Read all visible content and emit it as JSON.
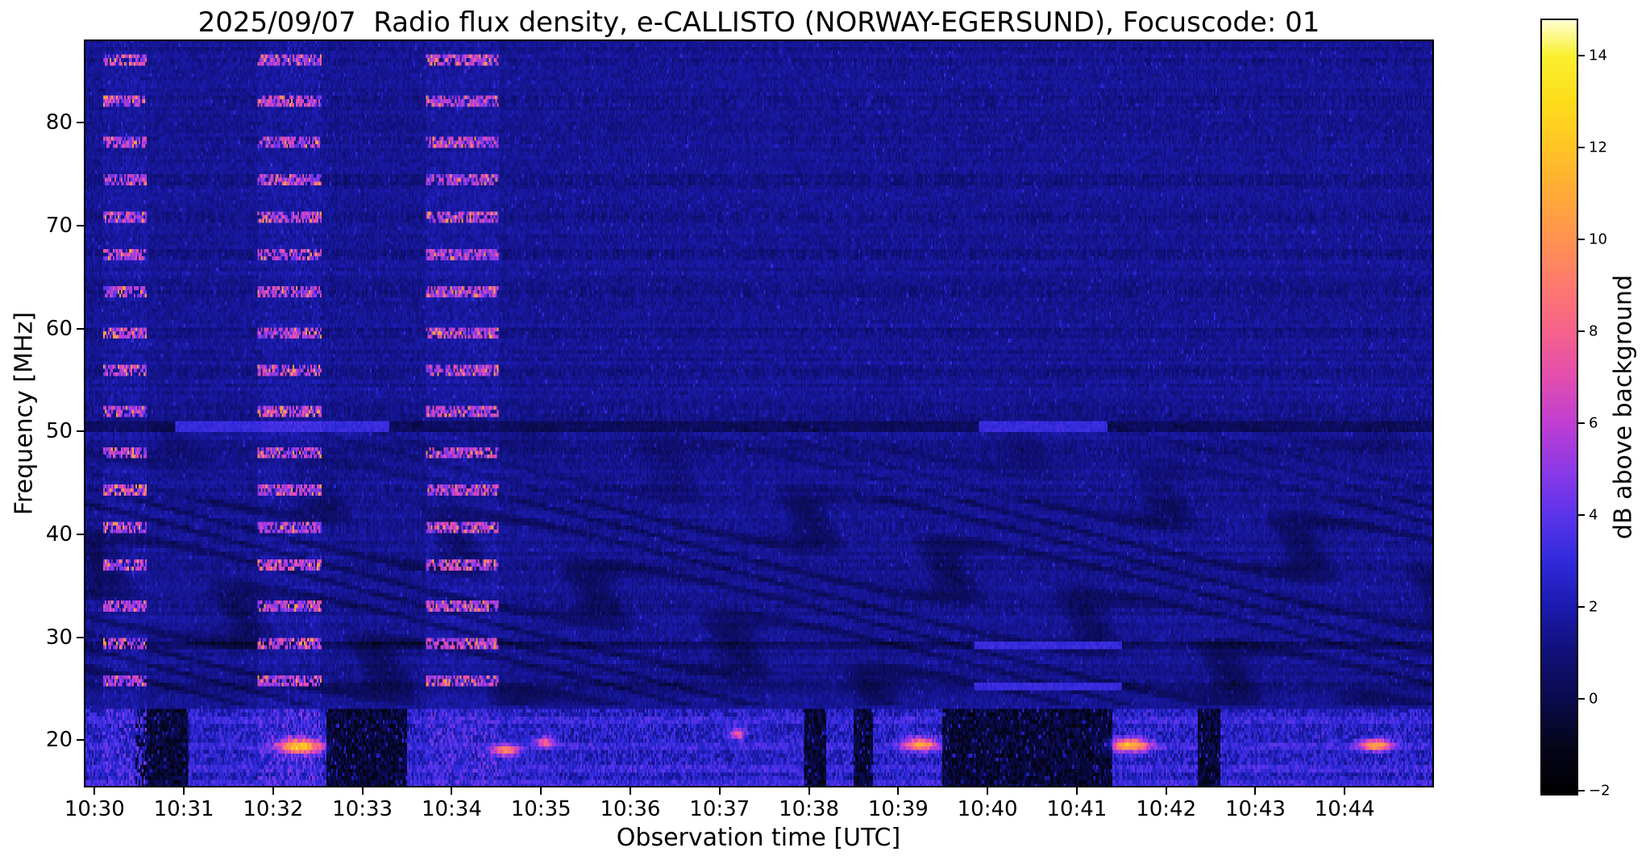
{
  "chart_data": {
    "type": "heatmap",
    "title": "2025/09/07  Radio flux density, e-CALLISTO (NORWAY-EGERSUND), Focuscode: 01",
    "xlabel": "Observation time [UTC]",
    "ylabel": "Frequency [MHz]",
    "colorbar_label": "dB above background",
    "xlim_minutes_after_1030": [
      -0.12,
      15.0
    ],
    "ylim_mhz": [
      15.4,
      88.1
    ],
    "x_ticks": [
      {
        "label": "10:30",
        "minute": 0
      },
      {
        "label": "10:31",
        "minute": 1
      },
      {
        "label": "10:32",
        "minute": 2
      },
      {
        "label": "10:33",
        "minute": 3
      },
      {
        "label": "10:34",
        "minute": 4
      },
      {
        "label": "10:35",
        "minute": 5
      },
      {
        "label": "10:36",
        "minute": 6
      },
      {
        "label": "10:37",
        "minute": 7
      },
      {
        "label": "10:38",
        "minute": 8
      },
      {
        "label": "10:39",
        "minute": 9
      },
      {
        "label": "10:40",
        "minute": 10
      },
      {
        "label": "10:41",
        "minute": 11
      },
      {
        "label": "10:42",
        "minute": 12
      },
      {
        "label": "10:43",
        "minute": 13
      },
      {
        "label": "10:44",
        "minute": 14
      }
    ],
    "y_ticks": [
      {
        "label": "80",
        "mhz": 80
      },
      {
        "label": "70",
        "mhz": 70
      },
      {
        "label": "60",
        "mhz": 60
      },
      {
        "label": "50",
        "mhz": 50
      },
      {
        "label": "40",
        "mhz": 40
      },
      {
        "label": "30",
        "mhz": 30
      },
      {
        "label": "20",
        "mhz": 20
      }
    ],
    "colorbar": {
      "vmin": -2.1,
      "vmax": 14.8,
      "ticks": [
        {
          "label": "14",
          "value": 14
        },
        {
          "label": "12",
          "value": 12
        },
        {
          "label": "10",
          "value": 10
        },
        {
          "label": "8",
          "value": 8
        },
        {
          "label": "6",
          "value": 6
        },
        {
          "label": "4",
          "value": 4
        },
        {
          "label": "2",
          "value": 2
        },
        {
          "label": "0",
          "value": 0
        },
        {
          "label": "−2",
          "value": -2
        }
      ]
    },
    "colormap": {
      "name": "gnuplot2-like (black-blue-magenta-pink-orange-yellow-white)",
      "stops": [
        [
          -2.1,
          0,
          0,
          0
        ],
        [
          -1.0,
          5,
          5,
          28
        ],
        [
          0.0,
          10,
          10,
          78
        ],
        [
          1.0,
          16,
          16,
          120
        ],
        [
          2.0,
          27,
          27,
          175
        ],
        [
          3.0,
          48,
          42,
          220
        ],
        [
          4.0,
          92,
          52,
          235
        ],
        [
          5.0,
          142,
          57,
          230
        ],
        [
          6.0,
          192,
          62,
          210
        ],
        [
          7.0,
          226,
          78,
          175
        ],
        [
          8.0,
          246,
          98,
          140
        ],
        [
          9.0,
          253,
          122,
          110
        ],
        [
          10.0,
          255,
          146,
          82
        ],
        [
          11.0,
          255,
          170,
          56
        ],
        [
          12.0,
          255,
          196,
          38
        ],
        [
          13.0,
          252,
          221,
          26
        ],
        [
          14.0,
          250,
          240,
          45
        ],
        [
          14.8,
          255,
          255,
          215
        ]
      ]
    },
    "features": {
      "background_db": 1.45,
      "burst_columns": [
        {
          "t0": 0.1,
          "t1": 0.58
        },
        {
          "t0": 1.83,
          "t1": 2.55
        },
        {
          "t0": 3.72,
          "t1": 4.52
        }
      ],
      "channel_lines_mhz": [
        86.0,
        82.1,
        78.2,
        74.5,
        70.9,
        67.2,
        63.5,
        59.7,
        55.8,
        52.0,
        48.1,
        44.4,
        40.6,
        36.9,
        33.1,
        29.5,
        25.6
      ],
      "interference_wave_band": {
        "f_min": 23.5,
        "f_max": 43.5,
        "weak_f_max": 50.5
      },
      "horizontal_bands": [
        {
          "f": 50.55,
          "half_width": 0.45,
          "base_delta": -1.0,
          "bright_segments": [
            [
              0.9,
              3.3
            ],
            [
              9.9,
              11.35
            ]
          ]
        },
        {
          "f": 29.3,
          "half_width": 0.35,
          "base_delta": -0.7,
          "bright_segments": [
            [
              9.85,
              11.5
            ]
          ]
        },
        {
          "f": 25.15,
          "half_width": 0.3,
          "base_delta": -0.3,
          "bright_segments": [
            [
              9.85,
              11.5
            ]
          ]
        }
      ],
      "bottom_band": {
        "f_max": 23.0,
        "base_db": 2.3,
        "bright_lines_mhz": [
          21.8,
          19.5,
          17.2,
          15.9
        ],
        "dark_patches_minutes": [
          [
            0.45,
            1.05
          ],
          [
            2.6,
            3.5
          ],
          [
            7.95,
            8.2
          ],
          [
            8.5,
            8.72
          ],
          [
            9.5,
            11.4
          ],
          [
            12.35,
            12.6
          ]
        ]
      },
      "bright_blobs": [
        {
          "t": 2.3,
          "f": 19.4,
          "amp": 9.5,
          "st": 0.17,
          "sf": 0.5
        },
        {
          "t": 4.6,
          "f": 19.0,
          "amp": 7.0,
          "st": 0.1,
          "sf": 0.4
        },
        {
          "t": 5.05,
          "f": 19.8,
          "amp": 5.5,
          "st": 0.07,
          "sf": 0.35
        },
        {
          "t": 7.2,
          "f": 20.6,
          "amp": 5.5,
          "st": 0.06,
          "sf": 0.35
        },
        {
          "t": 9.25,
          "f": 19.6,
          "amp": 8.0,
          "st": 0.13,
          "sf": 0.45
        },
        {
          "t": 11.6,
          "f": 19.5,
          "amp": 9.0,
          "st": 0.15,
          "sf": 0.45
        },
        {
          "t": 14.35,
          "f": 19.5,
          "amp": 8.0,
          "st": 0.13,
          "sf": 0.4
        }
      ]
    }
  }
}
